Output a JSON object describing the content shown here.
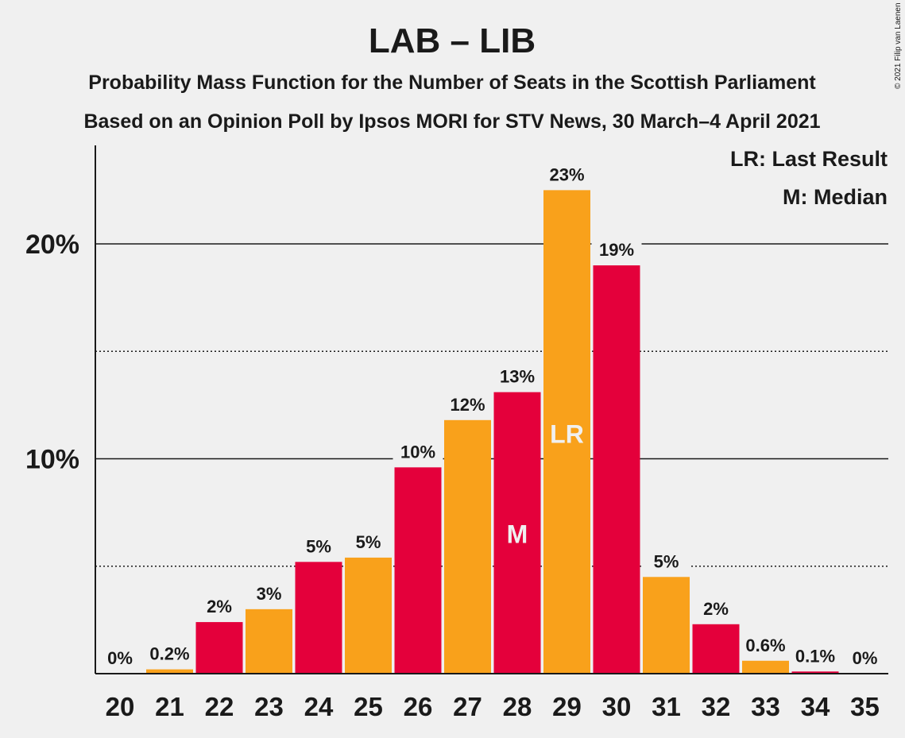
{
  "copyright": "© 2021 Filip van Laenen",
  "chart_data": {
    "type": "bar",
    "title": "LAB – LIB",
    "subtitle_line1": "Probability Mass Function for the Number of Seats in the Scottish Parliament",
    "subtitle_line2": "Based on an Opinion Poll by Ipsos MORI for STV News, 30 March–4 April 2021",
    "xlabel": "",
    "ylabel": "",
    "ylim": [
      0,
      24.5
    ],
    "y_ticks": [
      {
        "value": 10,
        "label": "10%",
        "style": "solid"
      },
      {
        "value": 20,
        "label": "20%",
        "style": "solid"
      }
    ],
    "y_minor_gridlines": [
      5,
      15
    ],
    "categories": [
      "20",
      "21",
      "22",
      "23",
      "24",
      "25",
      "26",
      "27",
      "28",
      "29",
      "30",
      "31",
      "32",
      "33",
      "34",
      "35"
    ],
    "values": [
      0,
      0.2,
      2.4,
      3.0,
      5.2,
      5.4,
      9.6,
      11.8,
      13.1,
      22.5,
      19.0,
      4.5,
      2.3,
      0.6,
      0.1,
      0
    ],
    "data_labels": [
      "0%",
      "0.2%",
      "2%",
      "3%",
      "5%",
      "5%",
      "10%",
      "12%",
      "13%",
      "23%",
      "19%",
      "5%",
      "2%",
      "0.6%",
      "0.1%",
      "0%"
    ],
    "bar_colors": [
      "#e4003b",
      "#f9a11b",
      "#e4003b",
      "#f9a11b",
      "#e4003b",
      "#f9a11b",
      "#e4003b",
      "#f9a11b",
      "#e4003b",
      "#f9a11b",
      "#e4003b",
      "#f9a11b",
      "#e4003b",
      "#f9a11b",
      "#e4003b",
      "#f9a11b"
    ],
    "markers": [
      {
        "category": "28",
        "text": "M"
      },
      {
        "category": "29",
        "text": "LR"
      }
    ],
    "legend": {
      "placement": "top-right",
      "entries": [
        "LR: Last Result",
        "M: Median"
      ]
    },
    "colors": {
      "red": "#e4003b",
      "orange": "#f9a11b",
      "background": "#f0f0f0",
      "text": "#1a1a1a"
    }
  }
}
